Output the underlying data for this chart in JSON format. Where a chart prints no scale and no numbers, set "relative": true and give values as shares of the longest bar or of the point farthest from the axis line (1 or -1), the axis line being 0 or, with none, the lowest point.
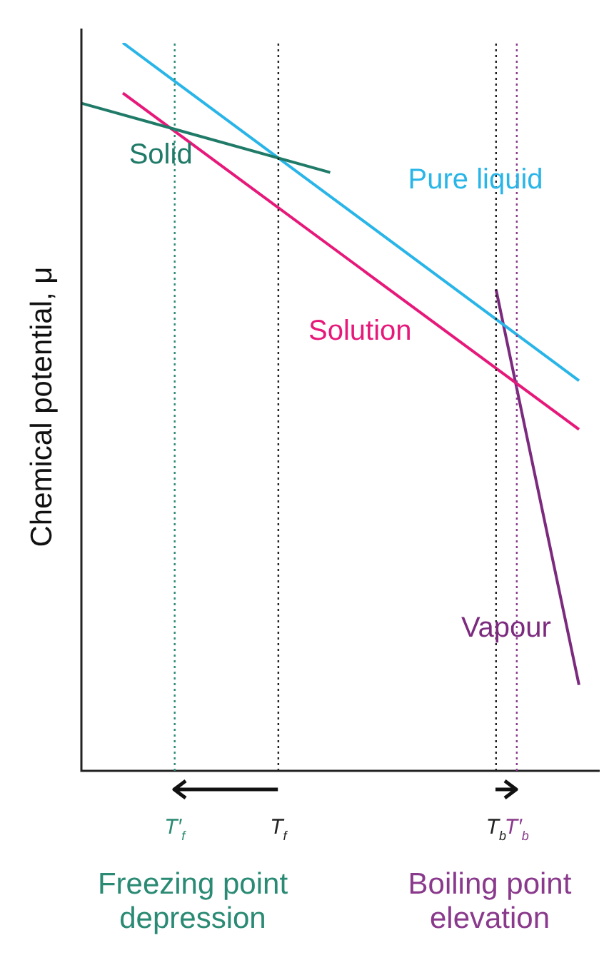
{
  "chart_data": {
    "type": "line",
    "relative": true,
    "ylabel": "Chemical potential, μ",
    "legend": false,
    "marker": "none",
    "categories": [
      null,
      null,
      null,
      null,
      null,
      null,
      null,
      null,
      null,
      "T′$_{f}$",
      null,
      null,
      null,
      null,
      null,
      null,
      null,
      null,
      null,
      "T$_{f}$",
      null,
      null,
      null,
      null,
      null,
      null,
      null,
      null,
      null,
      null,
      null,
      null,
      null,
      null,
      null,
      null,
      null,
      null,
      null,
      null,
      "T$_{b}$",
      null,
      "T′$_{b}$",
      null,
      null,
      null,
      null,
      null,
      null,
      null,
      null
    ],
    "series": [
      {
        "name": "Solid",
        "color": "#1f7a68",
        "values": [
          0.917,
          null,
          null,
          null,
          null,
          null,
          null,
          null,
          null,
          null,
          null,
          null,
          null,
          null,
          null,
          null,
          null,
          null,
          null,
          null,
          null,
          null,
          null,
          null,
          0.822,
          null,
          null,
          null,
          null,
          null,
          null,
          null,
          null,
          null,
          null,
          null,
          null,
          null,
          null,
          null,
          null,
          null,
          null,
          null,
          null,
          null,
          null,
          null,
          null,
          null,
          null
        ]
      },
      {
        "name": "Pure liquid",
        "color": "#29b5e8",
        "values": [
          null,
          null,
          null,
          null,
          1,
          null,
          null,
          null,
          null,
          null,
          null,
          null,
          null,
          null,
          null,
          null,
          null,
          null,
          null,
          null,
          null,
          null,
          null,
          null,
          null,
          null,
          null,
          null,
          null,
          null,
          null,
          null,
          null,
          null,
          null,
          null,
          null,
          null,
          null,
          null,
          null,
          null,
          null,
          null,
          null,
          null,
          null,
          null,
          0.536,
          null,
          null
        ]
      },
      {
        "name": "Solution",
        "color": "#e6197a",
        "values": [
          null,
          null,
          null,
          null,
          0.931,
          null,
          null,
          null,
          null,
          null,
          null,
          null,
          null,
          null,
          null,
          null,
          null,
          null,
          null,
          null,
          null,
          null,
          null,
          null,
          null,
          null,
          null,
          null,
          null,
          null,
          null,
          null,
          null,
          null,
          null,
          null,
          null,
          null,
          null,
          null,
          null,
          null,
          null,
          null,
          null,
          null,
          null,
          null,
          0.469,
          null,
          null
        ]
      },
      {
        "name": "Vapour",
        "color": "#7b2a7e",
        "values": [
          null,
          null,
          null,
          null,
          null,
          null,
          null,
          null,
          null,
          null,
          null,
          null,
          null,
          null,
          null,
          null,
          null,
          null,
          null,
          null,
          null,
          null,
          null,
          null,
          null,
          null,
          null,
          null,
          null,
          null,
          null,
          null,
          null,
          null,
          null,
          null,
          null,
          null,
          null,
          null,
          0.661,
          null,
          null,
          null,
          null,
          null,
          null,
          null,
          0.118,
          null,
          null
        ]
      }
    ],
    "ref_lines": [
      {
        "axis": "x",
        "value": "T′$_{f}$",
        "color": "#2a8a74",
        "line_style": "dotted"
      },
      {
        "axis": "x",
        "value": "T$_{f}$",
        "color": "#222222",
        "line_style": "dotted"
      },
      {
        "axis": "x",
        "value": "T$_{b}$",
        "color": "#222222",
        "line_style": "dotted"
      },
      {
        "axis": "x",
        "value": "T′$_{b}$",
        "color": "#8a3a8c",
        "line_style": "dotted"
      }
    ],
    "annotations": [
      "Freezing point depression",
      "Boiling point elevation"
    ]
  }
}
